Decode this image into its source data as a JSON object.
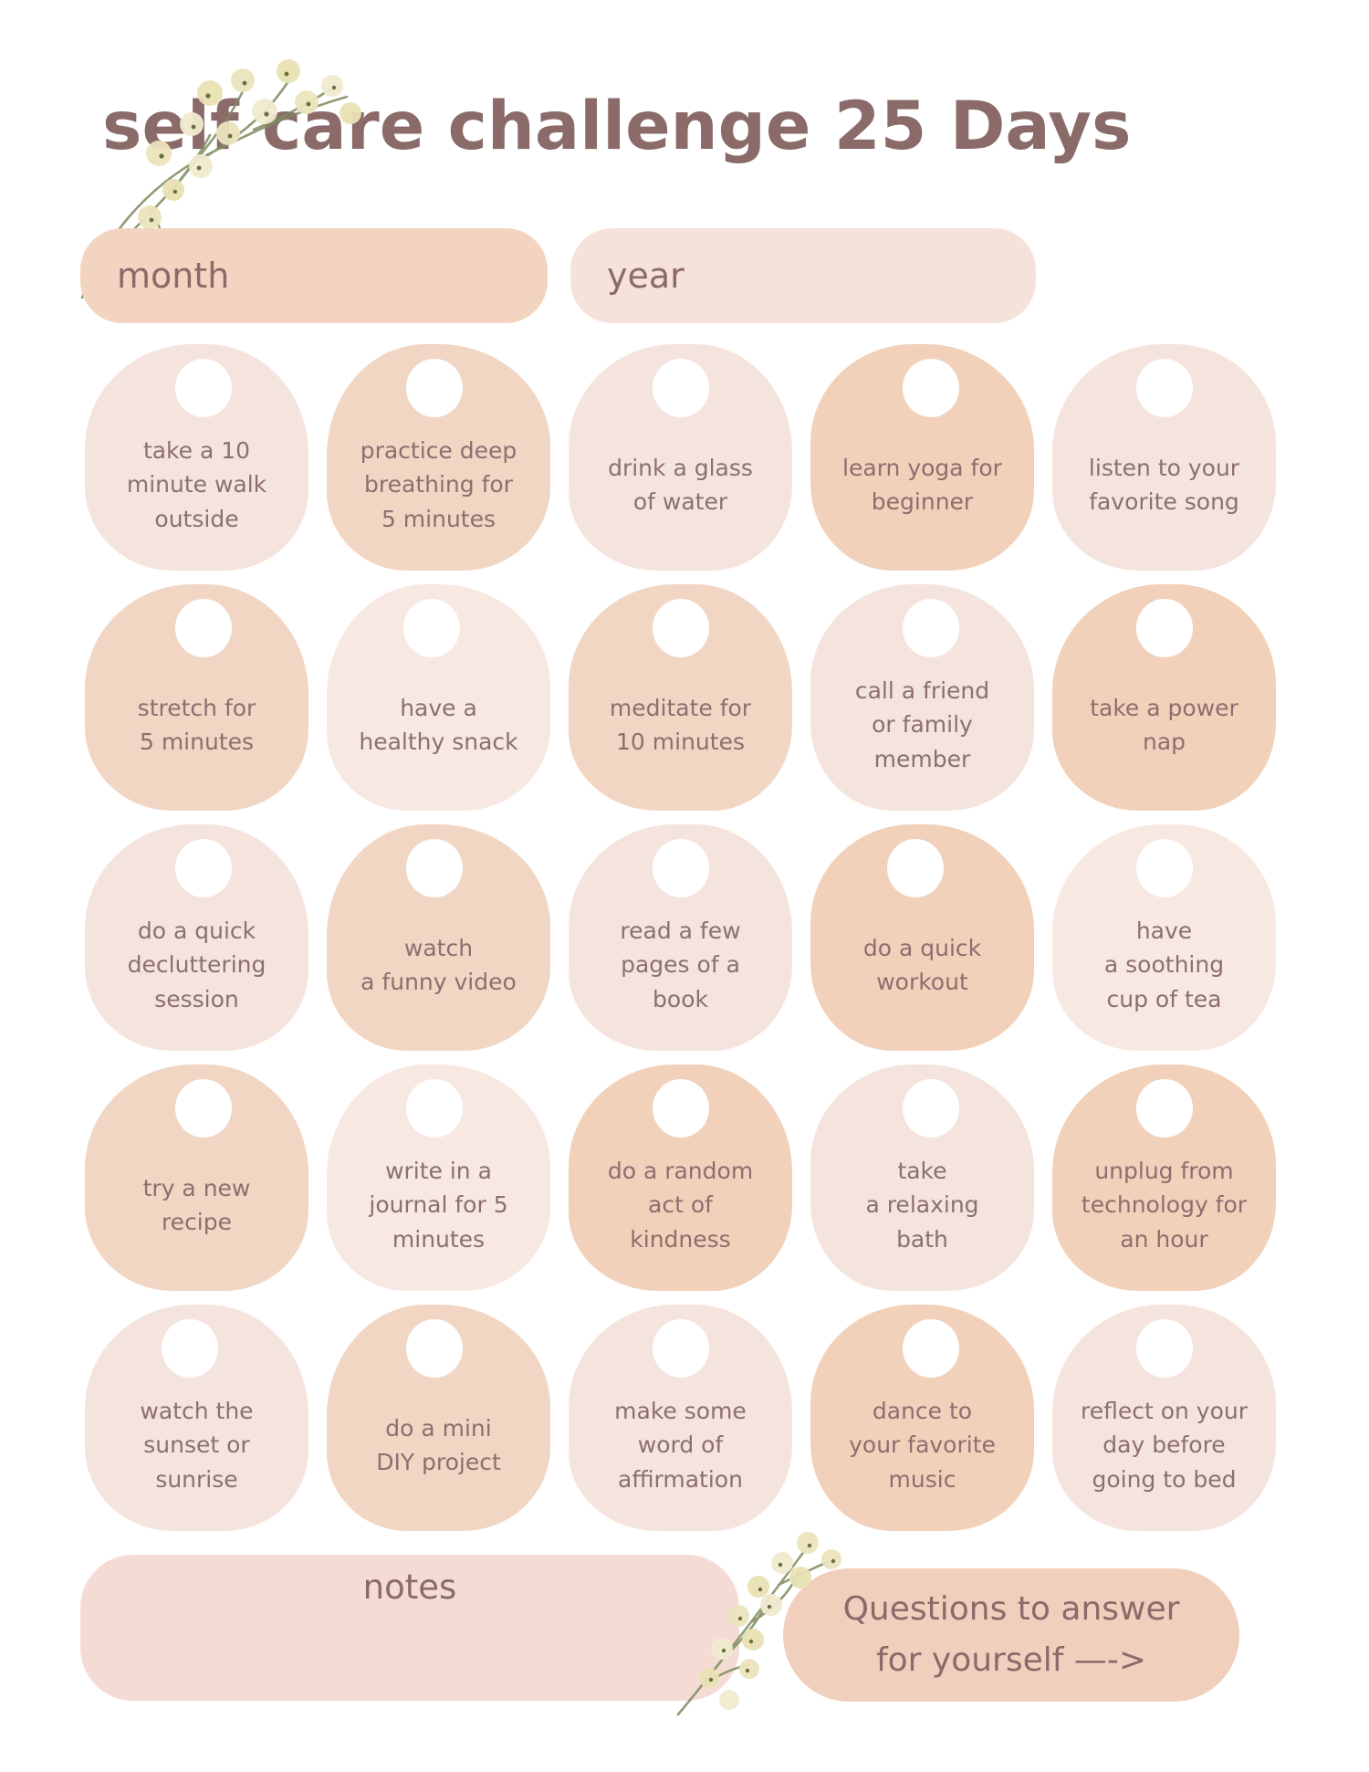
{
  "header": {
    "title": "self care challenge 25 Days"
  },
  "fields": {
    "month_label": "month",
    "year_label": "year"
  },
  "grid": {
    "cells": [
      {
        "label": "take a 10\nminute walk\noutside",
        "tone": "light"
      },
      {
        "label": "practice deep\nbreathing for\n5 minutes",
        "tone": "medium"
      },
      {
        "label": "drink a glass\nof water",
        "tone": "light"
      },
      {
        "label": "learn yoga for\nbeginner",
        "tone": "dark"
      },
      {
        "label": "listen to your\nfavorite song",
        "tone": "light"
      },
      {
        "label": "stretch for\n5 minutes",
        "tone": "medium"
      },
      {
        "label": "have a\nhealthy snack",
        "tone": "xlight"
      },
      {
        "label": "meditate for\n10 minutes",
        "tone": "medium"
      },
      {
        "label": "call a friend\nor family\nmember",
        "tone": "light"
      },
      {
        "label": "take a power\nnap",
        "tone": "dark"
      },
      {
        "label": "do a quick\ndecluttering\nsession",
        "tone": "light"
      },
      {
        "label": "watch\na funny video",
        "tone": "medium"
      },
      {
        "label": "read a few\npages of a\nbook",
        "tone": "light"
      },
      {
        "label": "do a quick\nworkout",
        "tone": "dark"
      },
      {
        "label": "have\na soothing\ncup of tea",
        "tone": "xlight"
      },
      {
        "label": "try a new\nrecipe",
        "tone": "medium"
      },
      {
        "label": "write in a\njournal for 5\nminutes",
        "tone": "xlight"
      },
      {
        "label": "do a random\nact of\nkindness",
        "tone": "dark"
      },
      {
        "label": "take\na relaxing\nbath",
        "tone": "light"
      },
      {
        "label": "unplug from\ntechnology for\nan hour",
        "tone": "dark"
      },
      {
        "label": "watch the\nsunset or\nsunrise",
        "tone": "light"
      },
      {
        "label": "do a mini\nDIY project",
        "tone": "medium"
      },
      {
        "label": "make some\nword of\naffirmation",
        "tone": "light"
      },
      {
        "label": "dance to\nyour favorite\nmusic",
        "tone": "dark"
      },
      {
        "label": "reflect on your\nday before\ngoing to bed",
        "tone": "light"
      }
    ]
  },
  "notes": {
    "label": "notes"
  },
  "questions": {
    "line1": "Questions to answer",
    "line2": "for yourself —->"
  },
  "decorations": {
    "flower_top_left": "babys-breath-sprig-icon",
    "flower_bottom": "babys-breath-sprig-icon"
  },
  "colors": {
    "title": "#8b6a6a",
    "label_text": "#8c6f6e",
    "month_pill": "#f2d4c1",
    "year_pill": "#f5e2da",
    "notes_box": "#f4dcd5",
    "questions_box": "#f1cfbd",
    "cell_light": "#f5e4dd",
    "cell_xlight": "#f7e8e1",
    "cell_medium": "#f2d6c4",
    "cell_dark": "#f1d1ba"
  }
}
